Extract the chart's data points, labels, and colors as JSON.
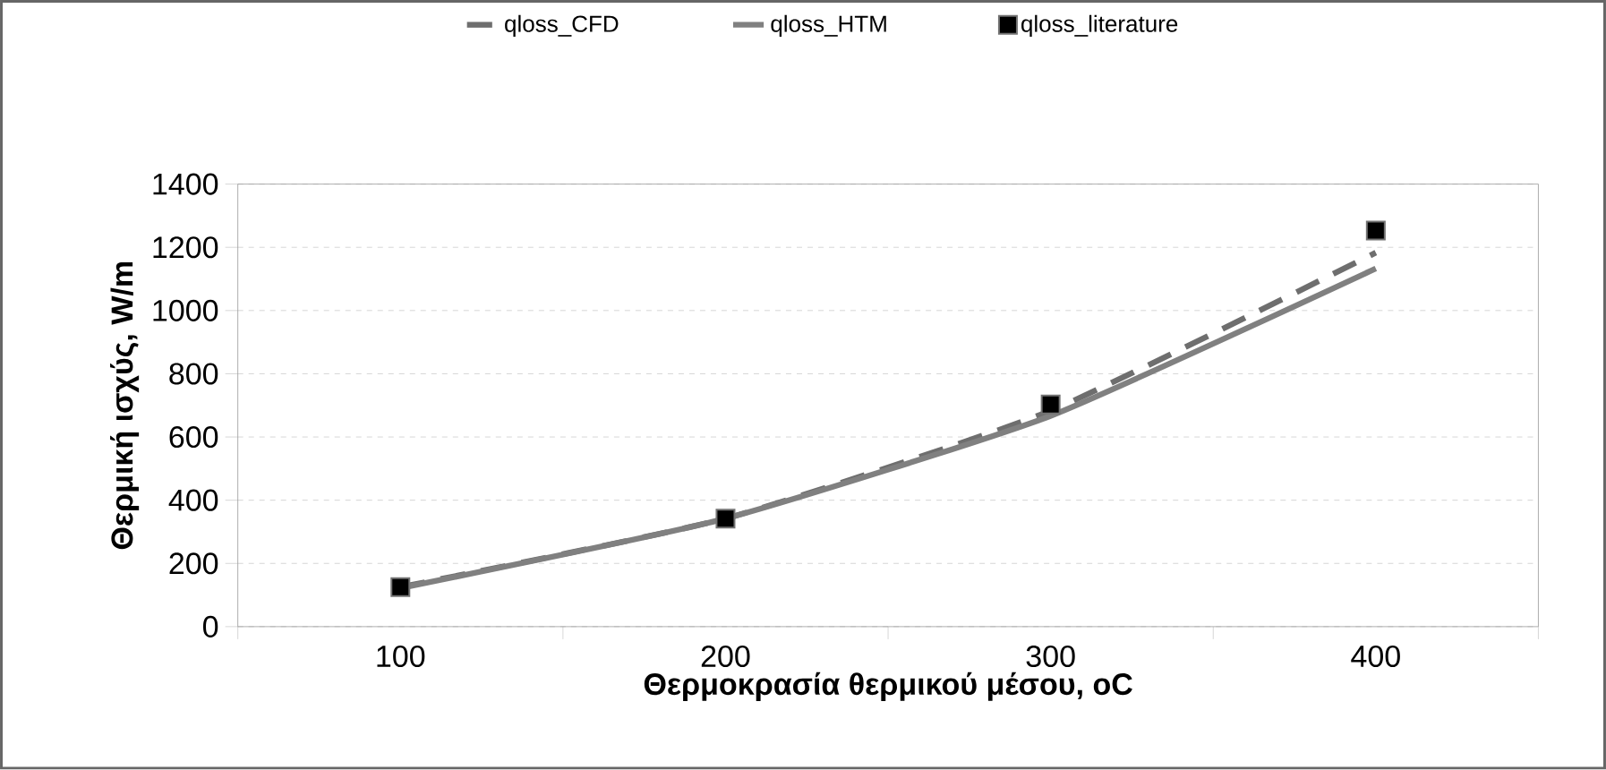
{
  "chart_data": {
    "type": "line",
    "xlabel": "Θερμοκρασία θερμικού μέσου, oC",
    "ylabel": "Θερμική ισχύς, W/m",
    "categories": [
      "100",
      "200",
      "300",
      "400"
    ],
    "series": [
      {
        "name": "qloss_CFD",
        "color": "#6e6e6e",
        "line_style": "dashed",
        "values": [
          125,
          342,
          683,
          1183
        ]
      },
      {
        "name": "qloss_HTM",
        "color": "#808080",
        "line_style": "solid",
        "values": [
          122,
          342,
          667,
          1133
        ]
      },
      {
        "name": "qloss_literature",
        "type": "scatter",
        "marker": "square",
        "color": "#000000",
        "values": [
          125,
          342,
          703,
          1253
        ]
      }
    ],
    "ylim": [
      0,
      1400
    ],
    "yticks": [
      0,
      200,
      400,
      600,
      800,
      1000,
      1200,
      1400
    ],
    "grid": "y",
    "legend": "top"
  }
}
